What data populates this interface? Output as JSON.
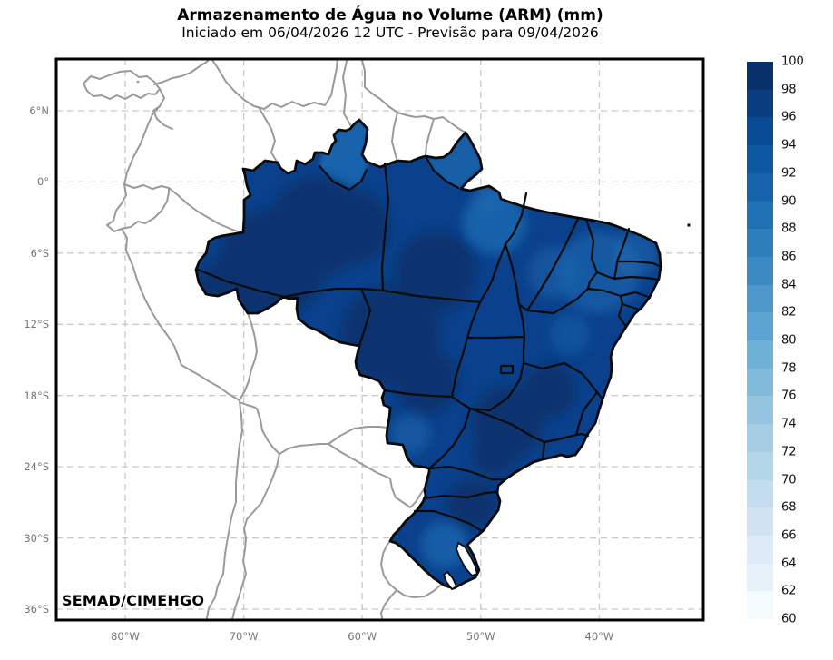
{
  "figure": {
    "title": "Armazenamento de Água no Volume (ARM) (mm)",
    "subtitle": "Iniciado em 06/04/2026 12 UTC - Previsão para 09/04/2026",
    "credit": "SEMAD/CIMEHGO"
  },
  "axes": {
    "x_tick_labels": [
      "80°W",
      "70°W",
      "60°W",
      "50°W",
      "40°W"
    ],
    "y_tick_labels": [
      "6°N",
      "0°",
      "6°S",
      "12°S",
      "18°S",
      "24°S",
      "30°S",
      "36°S"
    ]
  },
  "colorbar": {
    "tick_labels": [
      "100",
      "98",
      "96",
      "94",
      "92",
      "90",
      "88",
      "86",
      "84",
      "82",
      "80",
      "78",
      "76",
      "74",
      "72",
      "70",
      "68",
      "66",
      "64",
      "62",
      "60"
    ],
    "segment_colors_top_to_bottom": [
      "#08306b",
      "#083e80",
      "#084b94",
      "#0e58a2",
      "#1763ab",
      "#2171b5",
      "#2e7ebc",
      "#3d8ac3",
      "#4d97ca",
      "#5da3d1",
      "#6fb0d7",
      "#82badb",
      "#94c4df",
      "#a5cde3",
      "#b4d6e9",
      "#c3ddee",
      "#d1e3f3",
      "#dcebf7",
      "#e7f1fa",
      "#f5faff"
    ]
  },
  "chart_data": {
    "type": "heatmap",
    "title": "Armazenamento de Água no Volume (ARM) (mm)",
    "subtitle": "Iniciado em 06/04/2026 12 UTC - Previsão para 09/04/2026",
    "region": "Brazil (states outlined in black; neighboring countries in gray, unfilled)",
    "units": "mm",
    "colorbar_range": [
      60,
      100
    ],
    "colorbar_step": 2,
    "x_axis_ticks_deg_west": [
      80,
      70,
      60,
      50,
      40
    ],
    "y_axis_ticks_deg_lat": [
      6,
      0,
      -6,
      -12,
      -18,
      -24,
      -30,
      -36
    ],
    "grid": "dashed light-gray graticule every 10° lon / 6° lat",
    "legend_position": "right vertical colorbar",
    "value_summary": "ARM mostly 94–100 mm (dark blue) across Brazil; slightly lighter values (~88–94 mm) over Roraima, Amapá, eastern Pará, the northeast coastal states and Rio Grande do Sul."
  },
  "colors": {
    "map_base_fill": "#0b418c",
    "map_dark_fill": "#08306b",
    "map_light_fill": "#1e6cb4",
    "state_border": "#0a0a0a",
    "country_border": "#9a9a9a",
    "gridline": "#c9c9c9",
    "tick_label": "#767676",
    "plot_border": "#000000"
  }
}
